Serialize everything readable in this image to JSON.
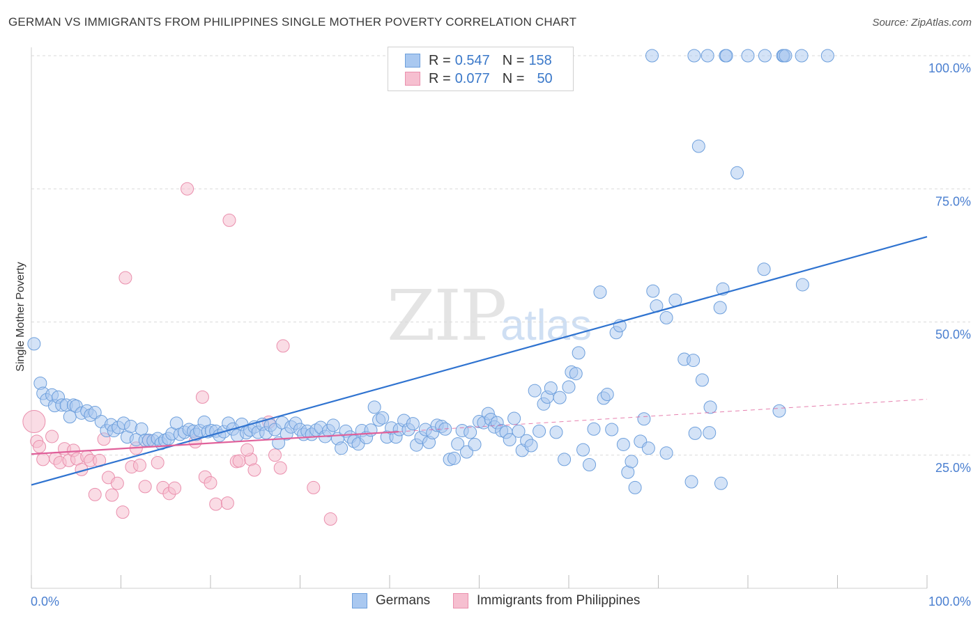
{
  "title": "GERMAN VS IMMIGRANTS FROM PHILIPPINES SINGLE MOTHER POVERTY CORRELATION CHART",
  "source": "Source: ZipAtlas.com",
  "watermark": {
    "zip": "ZIP",
    "atlas": "atlas"
  },
  "legend": {
    "rows": [
      {
        "r_label": "R =",
        "r_value": "0.547",
        "n_label": "N =",
        "n_value": "158"
      },
      {
        "r_label": "R =",
        "r_value": "0.077",
        "n_label": "N =",
        "n_value": "50"
      }
    ]
  },
  "bottom_legend": {
    "german": "Germans",
    "philippines": "Immigrants from Philippines"
  },
  "colors": {
    "german_fill": "#a9c8f0",
    "german_stroke": "#6d9fdc",
    "german_line": "#2f73d0",
    "phil_fill": "#f6bfd0",
    "phil_stroke": "#ea8fad",
    "phil_line": "#e0609a",
    "grid": "#d9d9d9",
    "tick_text": "#4a7fd0"
  },
  "chart_data": {
    "type": "scatter",
    "title": "GERMAN VS IMMIGRANTS FROM PHILIPPINES SINGLE MOTHER POVERTY CORRELATION CHART",
    "xlabel": "",
    "ylabel": "Single Mother Poverty",
    "xlim": [
      0,
      100
    ],
    "ylim": [
      0,
      100
    ],
    "x_tick_labels": [
      "0.0%",
      "100.0%"
    ],
    "y_tick_labels": [
      "25.0%",
      "50.0%",
      "75.0%",
      "100.0%"
    ],
    "y_ticks": [
      25,
      50,
      75,
      100
    ],
    "grid": true,
    "legend_position": "top-center",
    "series": [
      {
        "name": "Germans",
        "trend": {
          "x": [
            0,
            100
          ],
          "y": [
            19.4,
            66
          ]
        },
        "points": [
          [
            0.3,
            45.9
          ],
          [
            1.0,
            38.5
          ],
          [
            1.3,
            36.6
          ],
          [
            1.7,
            35.4
          ],
          [
            2.3,
            36.3
          ],
          [
            2.6,
            34.3
          ],
          [
            3.0,
            35.9
          ],
          [
            3.4,
            34.4
          ],
          [
            3.9,
            34.4
          ],
          [
            4.3,
            32.2
          ],
          [
            4.7,
            34.4
          ],
          [
            5.0,
            34.2
          ],
          [
            5.6,
            32.9
          ],
          [
            6.2,
            33.3
          ],
          [
            6.6,
            32.5
          ],
          [
            7.1,
            33.0
          ],
          [
            7.8,
            31.3
          ],
          [
            8.4,
            29.6
          ],
          [
            8.9,
            30.7
          ],
          [
            9.2,
            29.6
          ],
          [
            9.7,
            30.2
          ],
          [
            10.3,
            31.0
          ],
          [
            10.7,
            28.4
          ],
          [
            11.1,
            30.4
          ],
          [
            11.7,
            27.9
          ],
          [
            12.3,
            29.9
          ],
          [
            12.7,
            27.8
          ],
          [
            13.1,
            27.8
          ],
          [
            13.6,
            27.7
          ],
          [
            14.1,
            28.1
          ],
          [
            14.5,
            27.2
          ],
          [
            14.9,
            27.8
          ],
          [
            15.3,
            28.1
          ],
          [
            15.7,
            29.0
          ],
          [
            16.2,
            31.0
          ],
          [
            16.6,
            28.9
          ],
          [
            17.1,
            29.3
          ],
          [
            17.6,
            29.8
          ],
          [
            18.1,
            29.5
          ],
          [
            18.4,
            28.9
          ],
          [
            18.8,
            29.6
          ],
          [
            19.3,
            31.2
          ],
          [
            19.7,
            29.4
          ],
          [
            20.1,
            29.6
          ],
          [
            20.6,
            29.5
          ],
          [
            21.0,
            28.7
          ],
          [
            21.5,
            29.4
          ],
          [
            22.0,
            31.0
          ],
          [
            22.5,
            29.9
          ],
          [
            23.0,
            28.7
          ],
          [
            23.5,
            30.8
          ],
          [
            24.0,
            29.2
          ],
          [
            24.4,
            29.7
          ],
          [
            24.9,
            30.3
          ],
          [
            25.3,
            29.3
          ],
          [
            25.8,
            30.8
          ],
          [
            26.2,
            29.2
          ],
          [
            26.7,
            30.6
          ],
          [
            27.2,
            29.8
          ],
          [
            27.6,
            27.3
          ],
          [
            28.0,
            31.1
          ],
          [
            28.5,
            29.0
          ],
          [
            29.0,
            30.3
          ],
          [
            29.5,
            31.0
          ],
          [
            30.0,
            29.8
          ],
          [
            30.4,
            28.9
          ],
          [
            30.8,
            29.5
          ],
          [
            31.3,
            28.9
          ],
          [
            31.8,
            29.7
          ],
          [
            32.3,
            30.2
          ],
          [
            32.8,
            28.5
          ],
          [
            33.2,
            29.6
          ],
          [
            33.7,
            30.6
          ],
          [
            34.2,
            28.1
          ],
          [
            34.6,
            26.3
          ],
          [
            35.1,
            29.5
          ],
          [
            35.6,
            28.4
          ],
          [
            36.0,
            27.6
          ],
          [
            36.5,
            27.1
          ],
          [
            36.9,
            29.6
          ],
          [
            37.4,
            28.3
          ],
          [
            37.9,
            29.7
          ],
          [
            38.3,
            34.0
          ],
          [
            38.8,
            31.6
          ],
          [
            39.2,
            32.0
          ],
          [
            39.7,
            28.4
          ],
          [
            40.2,
            30.1
          ],
          [
            40.7,
            28.4
          ],
          [
            41.1,
            29.8
          ],
          [
            41.6,
            31.5
          ],
          [
            42.1,
            29.8
          ],
          [
            42.6,
            30.9
          ],
          [
            43.0,
            26.9
          ],
          [
            43.5,
            28.3
          ],
          [
            44.0,
            29.8
          ],
          [
            44.4,
            27.4
          ],
          [
            44.8,
            29.2
          ],
          [
            45.3,
            30.6
          ],
          [
            45.8,
            30.4
          ],
          [
            46.2,
            29.9
          ],
          [
            46.7,
            24.2
          ],
          [
            47.2,
            24.4
          ],
          [
            47.6,
            27.1
          ],
          [
            48.1,
            29.6
          ],
          [
            48.6,
            25.6
          ],
          [
            49.0,
            29.3
          ],
          [
            49.5,
            27.0
          ],
          [
            50.0,
            31.3
          ],
          [
            50.5,
            31.1
          ],
          [
            51.0,
            32.8
          ],
          [
            51.3,
            31.7
          ],
          [
            51.7,
            30.3
          ],
          [
            52.0,
            31.1
          ],
          [
            52.5,
            29.6
          ],
          [
            53.0,
            29.3
          ],
          [
            53.4,
            27.9
          ],
          [
            53.9,
            31.9
          ],
          [
            54.4,
            29.5
          ],
          [
            54.8,
            25.9
          ],
          [
            55.3,
            27.7
          ],
          [
            55.8,
            26.8
          ],
          [
            56.2,
            37.1
          ],
          [
            56.7,
            29.5
          ],
          [
            57.2,
            34.6
          ],
          [
            57.6,
            35.9
          ],
          [
            58.0,
            37.6
          ],
          [
            58.6,
            29.3
          ],
          [
            59.0,
            35.8
          ],
          [
            59.5,
            24.2
          ],
          [
            60.0,
            37.8
          ],
          [
            60.3,
            40.6
          ],
          [
            60.8,
            40.3
          ],
          [
            61.1,
            44.2
          ],
          [
            61.6,
            26.0
          ],
          [
            62.3,
            23.2
          ],
          [
            62.8,
            29.9
          ],
          [
            63.5,
            55.6
          ],
          [
            63.9,
            35.7
          ],
          [
            64.3,
            36.4
          ],
          [
            64.8,
            29.8
          ],
          [
            65.3,
            48.0
          ],
          [
            65.7,
            49.3
          ],
          [
            66.1,
            27.0
          ],
          [
            66.6,
            21.8
          ],
          [
            67.0,
            23.8
          ],
          [
            67.4,
            18.9
          ],
          [
            68.0,
            27.6
          ],
          [
            68.4,
            31.8
          ],
          [
            68.9,
            26.3
          ],
          [
            69.4,
            55.8
          ],
          [
            69.8,
            53.0
          ],
          [
            70.9,
            50.8
          ],
          [
            70.9,
            25.4
          ],
          [
            71.9,
            54.1
          ],
          [
            72.9,
            43.0
          ],
          [
            73.9,
            42.8
          ],
          [
            74.1,
            29.1
          ],
          [
            74.9,
            39.1
          ],
          [
            75.8,
            34.0
          ],
          [
            75.7,
            29.2
          ],
          [
            76.9,
            52.7
          ],
          [
            77.2,
            56.2
          ],
          [
            74.5,
            83.0
          ],
          [
            78.8,
            78.0
          ],
          [
            73.7,
            20.0
          ],
          [
            77.0,
            19.7
          ],
          [
            77.5,
            100
          ],
          [
            77.6,
            100
          ],
          [
            80.0,
            100
          ],
          [
            81.9,
            100
          ],
          [
            83.9,
            100
          ],
          [
            84.0,
            100
          ],
          [
            84.2,
            100
          ],
          [
            86.0,
            100
          ],
          [
            88.9,
            100
          ],
          [
            69.3,
            100
          ],
          [
            74.0,
            100
          ],
          [
            75.5,
            100
          ],
          [
            81.8,
            59.9
          ],
          [
            83.5,
            33.3
          ],
          [
            86.1,
            57.0
          ]
        ]
      },
      {
        "name": "Immigrants from Philippines",
        "trend": {
          "x": [
            0,
            41
          ],
          "y": [
            25.2,
            29.4
          ]
        },
        "trend_dashed": {
          "x": [
            41,
            100
          ],
          "y": [
            29.4,
            35.5
          ]
        },
        "points": [
          [
            0.3,
            31.3
          ],
          [
            0.6,
            27.6
          ],
          [
            0.9,
            26.6
          ],
          [
            1.3,
            24.2
          ],
          [
            2.3,
            28.5
          ],
          [
            2.7,
            24.4
          ],
          [
            3.2,
            23.6
          ],
          [
            3.7,
            26.2
          ],
          [
            4.2,
            24.0
          ],
          [
            4.7,
            25.9
          ],
          [
            5.1,
            24.3
          ],
          [
            5.6,
            22.3
          ],
          [
            6.2,
            24.7
          ],
          [
            6.6,
            24.0
          ],
          [
            7.1,
            17.6
          ],
          [
            7.6,
            24.0
          ],
          [
            8.1,
            28.0
          ],
          [
            8.6,
            20.8
          ],
          [
            9.0,
            17.5
          ],
          [
            9.6,
            19.7
          ],
          [
            10.2,
            14.3
          ],
          [
            10.5,
            58.3
          ],
          [
            11.2,
            22.8
          ],
          [
            11.7,
            26.3
          ],
          [
            12.1,
            23.1
          ],
          [
            12.7,
            19.1
          ],
          [
            13.1,
            27.7
          ],
          [
            14.1,
            23.6
          ],
          [
            14.7,
            18.9
          ],
          [
            15.4,
            17.8
          ],
          [
            16.0,
            18.8
          ],
          [
            17.4,
            75.0
          ],
          [
            18.3,
            27.5
          ],
          [
            19.1,
            35.9
          ],
          [
            19.4,
            20.9
          ],
          [
            20.0,
            19.8
          ],
          [
            20.6,
            15.8
          ],
          [
            21.9,
            16.0
          ],
          [
            22.1,
            69.1
          ],
          [
            22.9,
            23.8
          ],
          [
            23.2,
            23.9
          ],
          [
            24.5,
            24.2
          ],
          [
            24.9,
            22.2
          ],
          [
            24.1,
            26.0
          ],
          [
            26.5,
            31.2
          ],
          [
            27.2,
            25.0
          ],
          [
            27.8,
            22.6
          ],
          [
            28.1,
            45.5
          ],
          [
            31.5,
            18.9
          ],
          [
            33.4,
            13.0
          ]
        ]
      }
    ]
  }
}
